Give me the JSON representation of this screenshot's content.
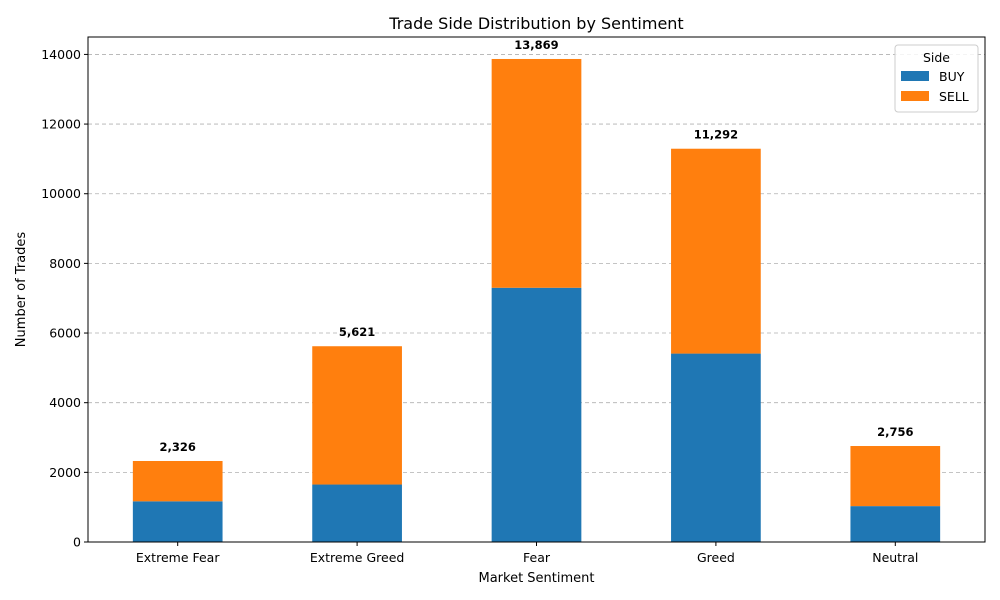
{
  "chart_data": {
    "type": "bar",
    "stacked": true,
    "title": "Trade Side Distribution by Sentiment",
    "xlabel": "Market Sentiment",
    "ylabel": "Number of Trades",
    "categories": [
      "Extreme Fear",
      "Extreme Greed",
      "Fear",
      "Greed",
      "Neutral"
    ],
    "series": [
      {
        "name": "BUY",
        "color": "#1f77b4",
        "values": [
          1168,
          1650,
          7300,
          5410,
          1030
        ]
      },
      {
        "name": "SELL",
        "color": "#ff7f0e",
        "values": [
          1158,
          3971,
          6569,
          5882,
          1726
        ]
      }
    ],
    "totals": [
      "2,326",
      "5,621",
      "13,869",
      "11,292",
      "2,756"
    ],
    "ylim": [
      0,
      14500
    ],
    "yticks": [
      0,
      2000,
      4000,
      6000,
      8000,
      10000,
      12000,
      14000
    ],
    "grid": "y-dashed",
    "legend": {
      "title": "Side",
      "placement": "top-right"
    }
  }
}
